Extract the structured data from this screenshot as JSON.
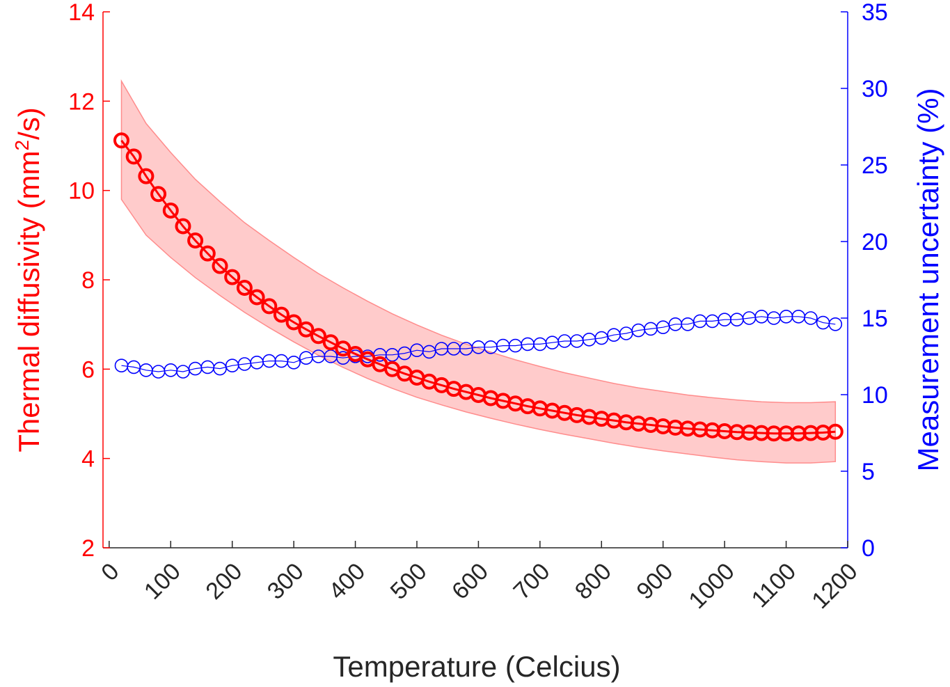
{
  "chart_data": {
    "type": "line",
    "xlabel": "Temperature (Celcius)",
    "ylabel_left_prefix": "Thermal diffusivity (mm",
    "ylabel_left_sup": "2",
    "ylabel_left_suffix": "/s)",
    "ylabel_right": "Measurement uncertainty (%)",
    "xlim": [
      -10,
      1200
    ],
    "ylim_left": [
      2,
      14
    ],
    "ylim_right": [
      0,
      35
    ],
    "x_ticks": [
      0,
      100,
      200,
      300,
      400,
      500,
      600,
      700,
      800,
      900,
      1000,
      1100,
      1200
    ],
    "x_tick_labels": [
      "0",
      "100",
      "200",
      "300",
      "400",
      "500",
      "600",
      "700",
      "800",
      "900",
      "1000",
      "1100",
      "1200"
    ],
    "y_left_ticks": [
      2,
      4,
      6,
      8,
      10,
      12,
      14
    ],
    "y_left_tick_labels": [
      "2",
      "4",
      "6",
      "8",
      "10",
      "12",
      "14"
    ],
    "y_right_ticks": [
      0,
      5,
      10,
      15,
      20,
      25,
      30,
      35
    ],
    "y_right_tick_labels": [
      "0",
      "5",
      "10",
      "15",
      "20",
      "25",
      "30",
      "35"
    ],
    "colors": {
      "left": "#ff0000",
      "right": "#0000ff",
      "band": "#ff8c8c",
      "axes": "#262626"
    },
    "x": [
      20,
      40,
      60,
      80,
      100,
      120,
      140,
      160,
      180,
      200,
      220,
      240,
      260,
      280,
      300,
      320,
      340,
      360,
      380,
      400,
      420,
      440,
      460,
      480,
      500,
      520,
      540,
      560,
      580,
      600,
      620,
      640,
      660,
      680,
      700,
      720,
      740,
      760,
      780,
      800,
      820,
      840,
      860,
      880,
      900,
      920,
      940,
      960,
      980,
      1000,
      1020,
      1040,
      1060,
      1080,
      1100,
      1120,
      1140,
      1160,
      1180
    ],
    "series": [
      {
        "axis": "left",
        "values": [
          11.12,
          10.76,
          10.32,
          9.92,
          9.55,
          9.2,
          8.88,
          8.59,
          8.31,
          8.06,
          7.82,
          7.61,
          7.41,
          7.22,
          7.05,
          6.89,
          6.74,
          6.6,
          6.46,
          6.34,
          6.22,
          6.11,
          6.0,
          5.9,
          5.81,
          5.72,
          5.64,
          5.56,
          5.49,
          5.42,
          5.35,
          5.29,
          5.23,
          5.17,
          5.12,
          5.07,
          5.02,
          4.97,
          4.93,
          4.89,
          4.85,
          4.81,
          4.78,
          4.75,
          4.72,
          4.69,
          4.67,
          4.65,
          4.63,
          4.61,
          4.59,
          4.58,
          4.57,
          4.56,
          4.56,
          4.56,
          4.57,
          4.58,
          4.6
        ]
      },
      {
        "axis": "right",
        "values": [
          11.9,
          11.8,
          11.6,
          11.5,
          11.6,
          11.5,
          11.7,
          11.8,
          11.7,
          11.9,
          12.0,
          12.1,
          12.2,
          12.2,
          12.1,
          12.4,
          12.5,
          12.5,
          12.4,
          12.5,
          12.5,
          12.6,
          12.6,
          12.7,
          12.9,
          12.8,
          13.0,
          13.0,
          13.0,
          13.1,
          13.1,
          13.2,
          13.2,
          13.3,
          13.3,
          13.4,
          13.5,
          13.5,
          13.6,
          13.7,
          13.9,
          14.0,
          14.2,
          14.3,
          14.4,
          14.6,
          14.6,
          14.8,
          14.8,
          14.9,
          14.9,
          15.0,
          15.1,
          15.0,
          15.1,
          15.1,
          15.0,
          14.7,
          14.6
        ]
      }
    ],
    "band": {
      "axis": "left",
      "x": [
        20,
        60,
        100,
        140,
        180,
        220,
        260,
        300,
        340,
        380,
        420,
        460,
        500,
        540,
        580,
        620,
        660,
        700,
        740,
        780,
        820,
        860,
        900,
        940,
        980,
        1020,
        1060,
        1100,
        1140,
        1180
      ],
      "upper": [
        12.45,
        11.5,
        10.85,
        10.25,
        9.75,
        9.28,
        8.88,
        8.5,
        8.14,
        7.82,
        7.52,
        7.24,
        6.99,
        6.76,
        6.56,
        6.38,
        6.21,
        6.06,
        5.92,
        5.8,
        5.68,
        5.58,
        5.5,
        5.42,
        5.36,
        5.31,
        5.27,
        5.25,
        5.25,
        5.27
      ],
      "lower": [
        9.8,
        9.0,
        8.5,
        8.05,
        7.65,
        7.27,
        6.93,
        6.61,
        6.31,
        6.04,
        5.79,
        5.57,
        5.37,
        5.2,
        5.04,
        4.9,
        4.77,
        4.65,
        4.54,
        4.44,
        4.34,
        4.25,
        4.17,
        4.1,
        4.03,
        3.97,
        3.93,
        3.9,
        3.9,
        3.93
      ]
    }
  }
}
